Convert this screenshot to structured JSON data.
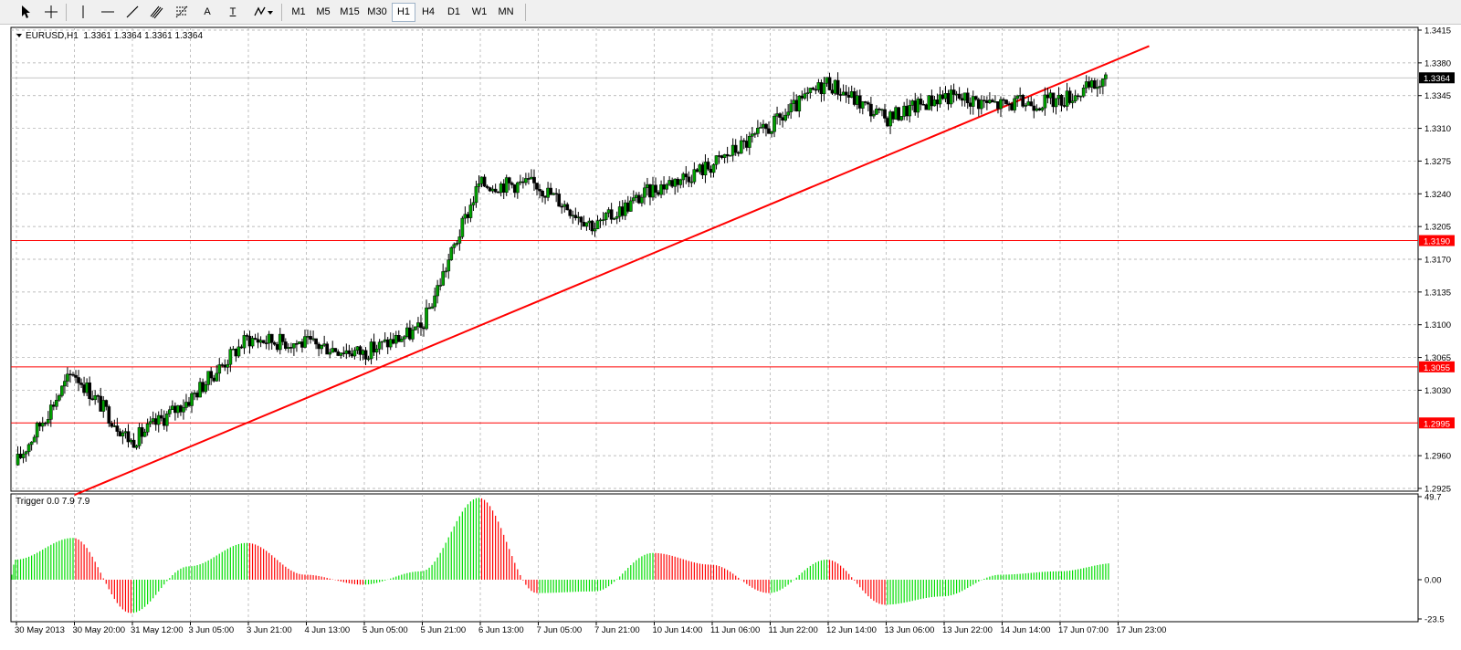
{
  "toolbar": {
    "tools": [
      {
        "name": "cursor-icon"
      },
      {
        "name": "crosshair-icon"
      },
      {
        "name": "vertical-line-icon"
      },
      {
        "name": "horizontal-line-icon"
      },
      {
        "name": "trendline-icon"
      },
      {
        "name": "equidistant-channel-icon"
      },
      {
        "name": "fibonacci-icon"
      },
      {
        "name": "text-icon",
        "label": "A"
      },
      {
        "name": "text-label-icon",
        "label": "T"
      },
      {
        "name": "arrows-dropdown-icon"
      }
    ],
    "timeframes": [
      "M1",
      "M5",
      "M15",
      "M30",
      "H1",
      "H4",
      "D1",
      "W1",
      "MN"
    ],
    "active_timeframe": "H1"
  },
  "chart": {
    "symbol_header": "EURUSD,H1  1.3361 1.3364 1.3361 1.3364",
    "indicator_header": "Trigger 0.0 7.9 7.9",
    "current_price_label": "1.3364",
    "colors": {
      "bull": "#00a000",
      "bear": "#000000",
      "level_line": "#ff0000",
      "trendline": "#ff0000",
      "grid": "#a8a8a8",
      "hist_pos": "#00dd00",
      "hist_neg": "#ff0000",
      "price_tag_bg": "#000000",
      "level_tag_bg": "#ff0000"
    }
  },
  "chart_data": {
    "type": "candlestick",
    "symbol": "EURUSD",
    "timeframe": "H1",
    "y_ticks": [
      "1.3415",
      "1.3380",
      "1.3345",
      "1.3310",
      "1.3275",
      "1.3240",
      "1.3205",
      "1.3170",
      "1.3135",
      "1.3100",
      "1.3065",
      "1.3030",
      "1.2960",
      "1.2925"
    ],
    "ylim": [
      1.2925,
      1.3415
    ],
    "x_labels": [
      "30 May 2013",
      "30 May 20:00",
      "31 May 12:00",
      "3 Jun 05:00",
      "3 Jun 21:00",
      "4 Jun 13:00",
      "5 Jun 05:00",
      "5 Jun 21:00",
      "6 Jun 13:00",
      "7 Jun 05:00",
      "7 Jun 21:00",
      "10 Jun 14:00",
      "11 Jun 06:00",
      "11 Jun 22:00",
      "12 Jun 14:00",
      "13 Jun 06:00",
      "13 Jun 22:00",
      "14 Jun 14:00",
      "17 Jun 07:00",
      "17 Jun 23:00"
    ],
    "horizontal_levels": [
      {
        "value": 1.319,
        "label": "1.3190"
      },
      {
        "value": 1.3055,
        "label": "1.3055"
      },
      {
        "value": 1.2995,
        "label": "1.2995"
      }
    ],
    "current_price": {
      "value": 1.3364,
      "label": "1.3364"
    },
    "trendline": {
      "from": {
        "label": "30 May 20:00",
        "value": 1.2918
      },
      "to": {
        "label": "17 Jun 23:00",
        "value": 1.3398
      }
    },
    "close_path": [
      {
        "label": "30 May 2013",
        "close": 1.295
      },
      {
        "label": "30 May 20:00",
        "close": 1.305
      },
      {
        "label": "31 May 12:00",
        "close": 1.2975
      },
      {
        "label": "3 Jun 05:00",
        "close": 1.302
      },
      {
        "label": "3 Jun 21:00",
        "close": 1.3085
      },
      {
        "label": "4 Jun 13:00",
        "close": 1.308
      },
      {
        "label": "5 Jun 05:00",
        "close": 1.307
      },
      {
        "label": "5 Jun 21:00",
        "close": 1.3095
      },
      {
        "label": "6 Jun 13:00",
        "close": 1.325
      },
      {
        "label": "7 Jun 05:00",
        "close": 1.325
      },
      {
        "label": "7 Jun 21:00",
        "close": 1.3205
      },
      {
        "label": "10 Jun 14:00",
        "close": 1.3245
      },
      {
        "label": "11 Jun 06:00",
        "close": 1.327
      },
      {
        "label": "11 Jun 22:00",
        "close": 1.331
      },
      {
        "label": "12 Jun 14:00",
        "close": 1.336
      },
      {
        "label": "13 Jun 06:00",
        "close": 1.332
      },
      {
        "label": "13 Jun 22:00",
        "close": 1.3345
      },
      {
        "label": "14 Jun 14:00",
        "close": 1.3335
      },
      {
        "label": "17 Jun 07:00",
        "close": 1.334
      },
      {
        "label": "17 Jun 23:00",
        "close": 1.3364
      }
    ],
    "indicator": {
      "name": "Trigger",
      "header": "Trigger 0.0 7.9 7.9",
      "y_ticks": [
        "49.7",
        "0.00",
        "-23.5"
      ],
      "ylim": [
        -23.5,
        49.7
      ],
      "values": [
        {
          "label": "30 May 2013",
          "value": 12
        },
        {
          "label": "30 May 20:00",
          "value": 25
        },
        {
          "label": "31 May 12:00",
          "value": -20
        },
        {
          "label": "3 Jun 05:00",
          "value": 8
        },
        {
          "label": "3 Jun 21:00",
          "value": 22
        },
        {
          "label": "4 Jun 13:00",
          "value": 3
        },
        {
          "label": "5 Jun 05:00",
          "value": -3
        },
        {
          "label": "5 Jun 21:00",
          "value": 5
        },
        {
          "label": "6 Jun 13:00",
          "value": 49
        },
        {
          "label": "7 Jun 05:00",
          "value": -8
        },
        {
          "label": "7 Jun 21:00",
          "value": -7
        },
        {
          "label": "10 Jun 14:00",
          "value": 16
        },
        {
          "label": "11 Jun 06:00",
          "value": 9
        },
        {
          "label": "11 Jun 22:00",
          "value": -8
        },
        {
          "label": "12 Jun 14:00",
          "value": 12
        },
        {
          "label": "13 Jun 06:00",
          "value": -15
        },
        {
          "label": "13 Jun 22:00",
          "value": -10
        },
        {
          "label": "14 Jun 14:00",
          "value": 3
        },
        {
          "label": "17 Jun 07:00",
          "value": 5
        },
        {
          "label": "17 Jun 23:00",
          "value": 10
        }
      ]
    }
  }
}
